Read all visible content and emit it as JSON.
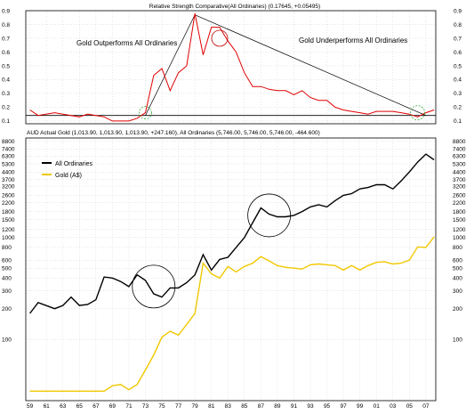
{
  "chart_data": [
    {
      "type": "line",
      "title": "Relative Strength Comparative(All Ordinaries) (0.17645, +0.05495)",
      "ylim": [
        0.08,
        0.9
      ],
      "yticks": [
        0.1,
        0.2,
        0.3,
        0.4,
        0.5,
        0.6,
        0.7,
        0.8,
        0.9
      ],
      "ytick_labels": [
        "0.1",
        "0.2",
        "0.3",
        "0.4",
        "0.5",
        "0.6",
        "0.7",
        "0.8",
        "0.9"
      ],
      "grid": true,
      "horizontal_line": 0.14,
      "series": [
        {
          "color": "#e00000",
          "x": [
            1959,
            1960,
            1962,
            1963,
            1965,
            1966,
            1968,
            1969,
            1970,
            1971,
            1972,
            1973,
            1974,
            1975,
            1976,
            1977,
            1978,
            1979,
            1980,
            1981,
            1982,
            1983,
            1984,
            1985,
            1986,
            1987,
            1988,
            1989,
            1990,
            1991,
            1992,
            1993,
            1994,
            1995,
            1996,
            1997,
            1998,
            1999,
            2000,
            2001,
            2002,
            2003,
            2004,
            2005,
            2006,
            2007,
            2008
          ],
          "y": [
            0.18,
            0.14,
            0.16,
            0.15,
            0.13,
            0.15,
            0.13,
            0.1,
            0.1,
            0.1,
            0.12,
            0.16,
            0.43,
            0.48,
            0.32,
            0.45,
            0.5,
            0.88,
            0.58,
            0.78,
            0.78,
            0.68,
            0.6,
            0.45,
            0.35,
            0.35,
            0.33,
            0.32,
            0.32,
            0.29,
            0.32,
            0.27,
            0.25,
            0.25,
            0.2,
            0.18,
            0.17,
            0.16,
            0.15,
            0.17,
            0.17,
            0.17,
            0.16,
            0.15,
            0.13,
            0.16,
            0.18
          ]
        }
      ],
      "trendlines": [
        {
          "x": [
            1973,
            1979
          ],
          "y": [
            0.14,
            0.87
          ]
        },
        {
          "x": [
            1979,
            2007
          ],
          "y": [
            0.87,
            0.14
          ]
        }
      ],
      "circles": [
        {
          "x": 1973,
          "y": 0.16
        },
        {
          "x": 1982,
          "y": 0.7
        },
        {
          "x": 2006,
          "y": 0.16
        }
      ],
      "annotations": [
        "Gold Outperforms All Ordinaries",
        "Gold Underperforms All Ordinaries"
      ]
    },
    {
      "type": "line",
      "title": "AUD Actual Gold (1,013.90, 1,013.90, 1,013.90, +247.160), All Ordinaries (5,746.00, 5,746.00, 5,746.00, -464.600)",
      "yscale": "log",
      "ylim": [
        25,
        9500
      ],
      "yticks": [
        100,
        200,
        300,
        400,
        500,
        600,
        800,
        1000,
        1200,
        1500,
        1800,
        2200,
        2600,
        3200,
        3700,
        4400,
        5300,
        6300,
        7400,
        8800
      ],
      "ytick_labels": [
        "100",
        "200",
        "300",
        "400",
        "500",
        "600",
        "800",
        "1000",
        "1200",
        "1500",
        "1800",
        "2200",
        "2600",
        "3200",
        "3700",
        "4400",
        "5300",
        "6300",
        "7400",
        "8800"
      ],
      "xticks": [
        1959,
        1961,
        1963,
        1965,
        1967,
        1969,
        1971,
        1973,
        1975,
        1977,
        1979,
        1981,
        1983,
        1985,
        1987,
        1989,
        1991,
        1993,
        1995,
        1997,
        1999,
        2001,
        2003,
        2005,
        2007
      ],
      "xtick_labels": [
        "59",
        "61",
        "63",
        "65",
        "67",
        "69",
        "71",
        "73",
        "75",
        "77",
        "79",
        "81",
        "83",
        "85",
        "87",
        "89",
        "91",
        "93",
        "95",
        "97",
        "99",
        "01",
        "03",
        "05",
        "07"
      ],
      "grid": true,
      "legend": "top-left",
      "series": [
        {
          "name": "All Ordinaries",
          "color": "#000000",
          "x": [
            1959,
            1960,
            1962,
            1963,
            1964,
            1965,
            1966,
            1967,
            1968,
            1969,
            1970,
            1971,
            1972,
            1973,
            1974,
            1975,
            1976,
            1977,
            1978,
            1979,
            1980,
            1981,
            1982,
            1983,
            1984,
            1985,
            1986,
            1987,
            1988,
            1989,
            1990,
            1991,
            1992,
            1993,
            1994,
            1995,
            1996,
            1997,
            1998,
            1999,
            2000,
            2001,
            2002,
            2003,
            2004,
            2005,
            2006,
            2007,
            2008
          ],
          "y": [
            180,
            230,
            200,
            215,
            260,
            215,
            220,
            245,
            410,
            400,
            370,
            330,
            430,
            380,
            280,
            260,
            320,
            320,
            360,
            430,
            680,
            480,
            610,
            640,
            800,
            1000,
            1400,
            1950,
            1700,
            1600,
            1600,
            1650,
            1800,
            2000,
            2100,
            2000,
            2300,
            2600,
            2700,
            3000,
            3100,
            3300,
            3300,
            3000,
            3600,
            4400,
            5500,
            6600,
            5800
          ]
        },
        {
          "name": "Gold (A$)",
          "color": "#f0c800",
          "x": [
            1959,
            1962,
            1966,
            1968,
            1969,
            1970,
            1971,
            1972,
            1973,
            1974,
            1975,
            1976,
            1977,
            1978,
            1979,
            1980,
            1981,
            1982,
            1983,
            1984,
            1985,
            1986,
            1987,
            1988,
            1989,
            1990,
            1991,
            1992,
            1993,
            1994,
            1995,
            1996,
            1997,
            1998,
            1999,
            2000,
            2001,
            2002,
            2003,
            2004,
            2005,
            2006,
            2007,
            2008
          ],
          "y": [
            31,
            31,
            31,
            31,
            35,
            36,
            32,
            36,
            50,
            70,
            105,
            120,
            110,
            140,
            180,
            560,
            440,
            400,
            520,
            460,
            520,
            560,
            650,
            590,
            530,
            510,
            500,
            490,
            540,
            550,
            540,
            530,
            480,
            530,
            480,
            530,
            570,
            580,
            550,
            560,
            600,
            810,
            800,
            1014
          ]
        }
      ],
      "circles": [
        {
          "x": 1974,
          "y": 330
        },
        {
          "x": 1988,
          "y": 1650
        }
      ]
    }
  ]
}
